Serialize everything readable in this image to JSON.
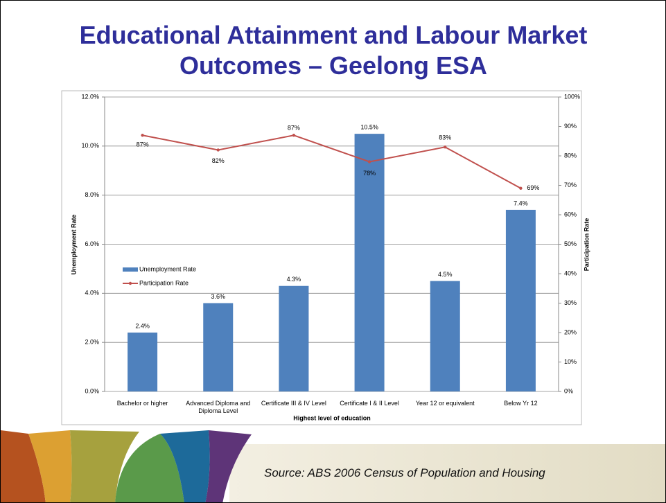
{
  "title": "Educational Attainment and Labour Market Outcomes – Geelong ESA",
  "source": "Source: ABS 2006 Census of Population and Housing",
  "chart_data": {
    "type": "bar",
    "categories": [
      "Bachelor or higher",
      "Advanced Diploma and Diploma Level",
      "Certificate III & IV Level",
      "Certificate I & II Level",
      "Year 12 or equivalent",
      "Below Yr 12"
    ],
    "x_label": "Highest level of education",
    "y_label": "Unemployment Rate",
    "y2_label": "Participation Rate",
    "ylim": [
      0,
      12
    ],
    "yticks": [
      {
        "value": 0,
        "label": "0.0%"
      },
      {
        "value": 2,
        "label": "2.0%"
      },
      {
        "value": 4,
        "label": "4.0%"
      },
      {
        "value": 6,
        "label": "6.0%"
      },
      {
        "value": 8,
        "label": "8.0%"
      },
      {
        "value": 10,
        "label": "10.0%"
      },
      {
        "value": 12,
        "label": "12.0%"
      }
    ],
    "y2lim": [
      0,
      100
    ],
    "y2ticks": [
      {
        "value": 0,
        "label": "0%"
      },
      {
        "value": 10,
        "label": "10%"
      },
      {
        "value": 20,
        "label": "20%"
      },
      {
        "value": 30,
        "label": "30%"
      },
      {
        "value": 40,
        "label": "40%"
      },
      {
        "value": 50,
        "label": "50%"
      },
      {
        "value": 60,
        "label": "60%"
      },
      {
        "value": 70,
        "label": "70%"
      },
      {
        "value": 80,
        "label": "80%"
      },
      {
        "value": 90,
        "label": "90%"
      },
      {
        "value": 100,
        "label": "100%"
      }
    ],
    "grid": true,
    "series": [
      {
        "name": "Unemployment Rate",
        "type": "bar",
        "color": "#4f81bd",
        "values": [
          2.4,
          3.6,
          4.3,
          10.5,
          4.5,
          7.4
        ],
        "value_labels": [
          "2.4%",
          "3.6%",
          "4.3%",
          "10.5%",
          "4.5%",
          "7.4%"
        ]
      },
      {
        "name": "Participation Rate",
        "type": "line",
        "axis": "y2",
        "color": "#c0504d",
        "values": [
          87,
          82,
          87,
          78,
          83,
          69
        ],
        "value_labels": [
          "87%",
          "82%",
          "87%",
          "78%",
          "83%",
          "69%"
        ]
      }
    ]
  }
}
